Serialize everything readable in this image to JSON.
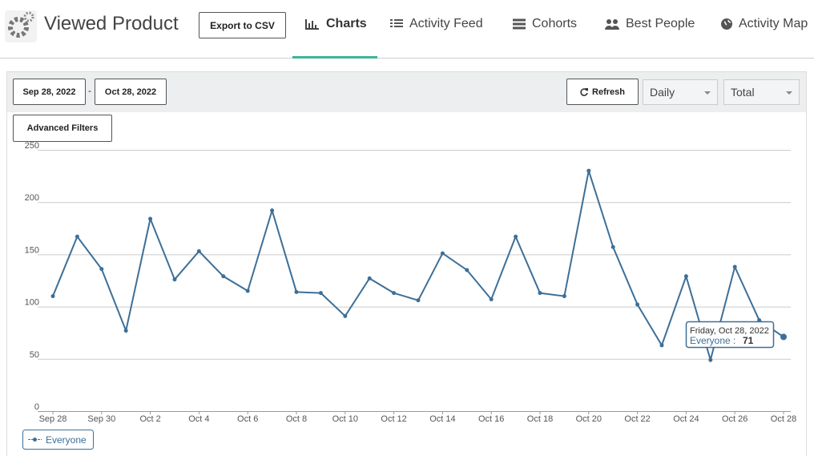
{
  "header": {
    "title": "Viewed Product",
    "export_button": "Export to CSV",
    "tabs": [
      {
        "label": "Charts",
        "active": true
      },
      {
        "label": "Activity Feed",
        "active": false
      },
      {
        "label": "Cohorts",
        "active": false
      },
      {
        "label": "Best People",
        "active": false
      },
      {
        "label": "Activity Map",
        "active": false
      }
    ]
  },
  "toolbar": {
    "start_date": "Sep 28, 2022",
    "date_separator": "-",
    "end_date": "Oct 28, 2022",
    "refresh_button": "Refresh",
    "interval": "Daily",
    "measure": "Total",
    "filters_button": "Advanced Filters"
  },
  "chart_data": {
    "type": "line",
    "categories": [
      "Sep 28",
      null,
      "Sep 30",
      null,
      "Oct 2",
      null,
      "Oct 4",
      null,
      "Oct 6",
      null,
      "Oct 8",
      null,
      "Oct 10",
      null,
      "Oct 12",
      null,
      "Oct 14",
      null,
      "Oct 16",
      null,
      "Oct 18",
      null,
      "Oct 20",
      null,
      "Oct 22",
      null,
      "Oct 24",
      null,
      "Oct 26",
      null,
      "Oct 28"
    ],
    "series": [
      {
        "name": "Everyone",
        "color": "#3d6f97",
        "values": [
          110,
          167,
          136,
          77,
          184,
          126,
          153,
          129,
          115,
          192,
          114,
          113,
          91,
          127,
          113,
          106,
          151,
          135,
          107,
          167,
          113,
          110,
          230,
          157,
          102,
          63,
          129,
          49,
          138,
          87,
          71
        ]
      }
    ],
    "ylim": [
      0,
      250
    ],
    "yticks": [
      0,
      50,
      100,
      150,
      200,
      250
    ],
    "grid": true,
    "legend": "bottom-left",
    "tooltip": {
      "date": "Friday, Oct 28, 2022",
      "series_label": "Everyone :"
    }
  }
}
